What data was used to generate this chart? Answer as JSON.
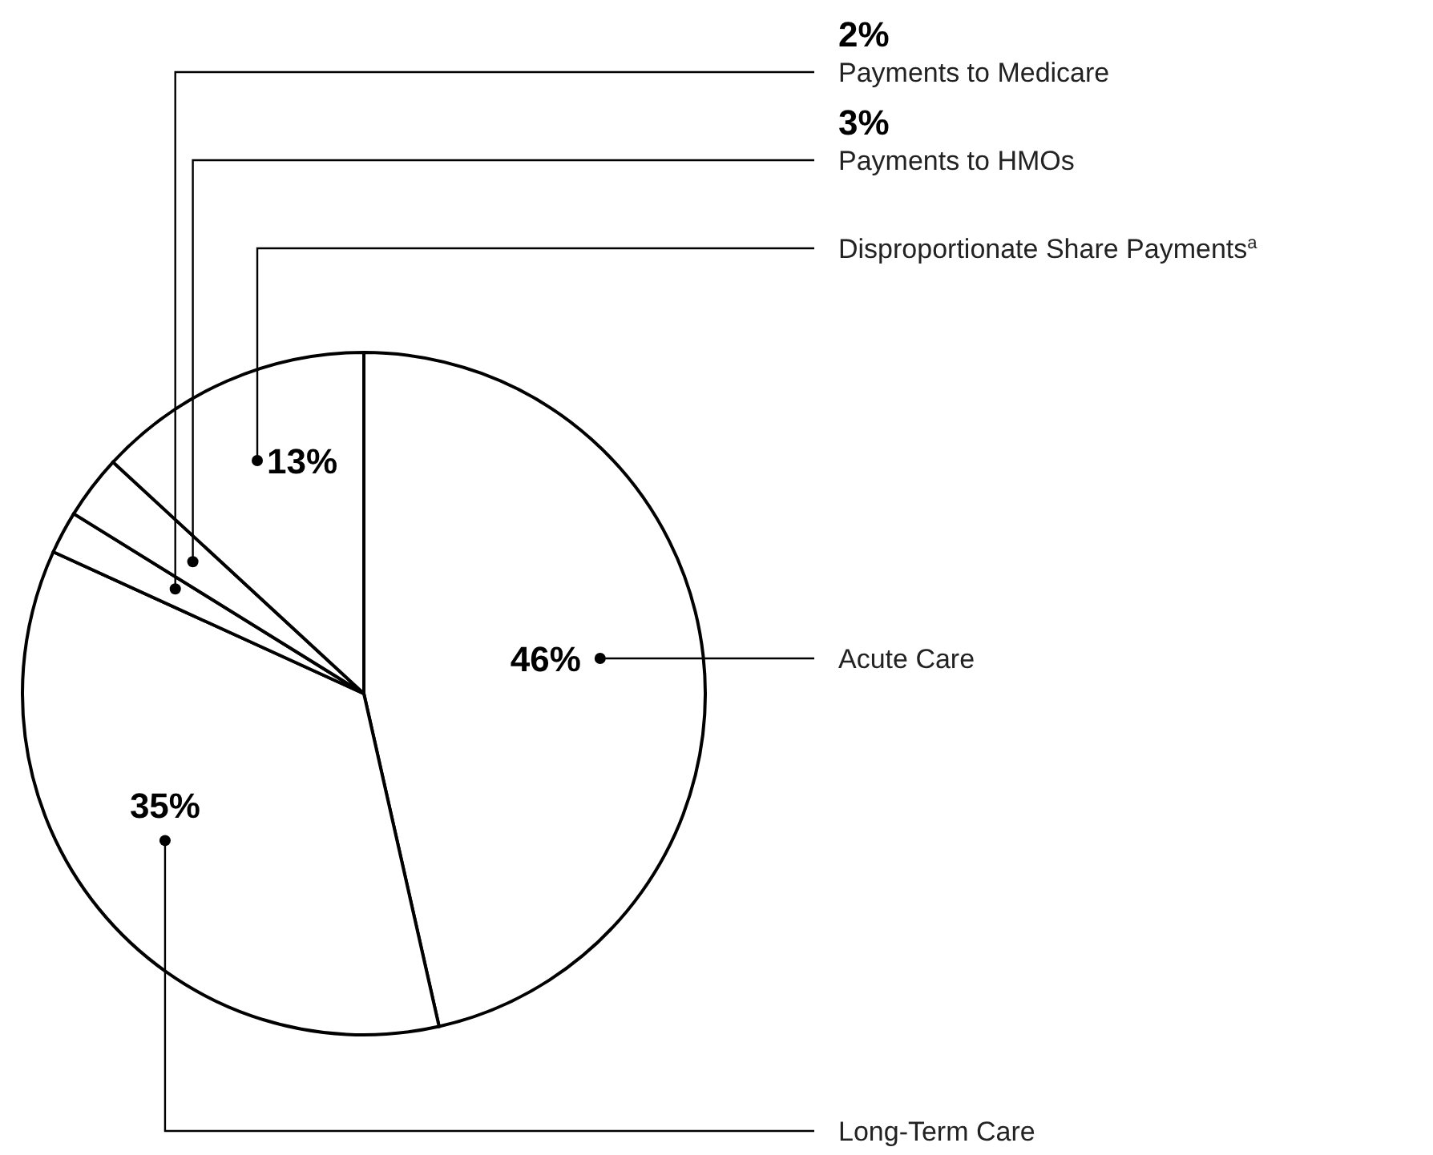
{
  "chart_data": {
    "type": "pie",
    "categories": [
      "Acute Care",
      "Long-Term Care",
      "Payments to Medicare",
      "Payments to HMOs",
      "Disproportionate Share Payments$^{a}$"
    ],
    "values": [
      46,
      35,
      2,
      3,
      13
    ],
    "colors": [
      "#ffffff",
      "#ffffff",
      "#ffffff",
      "#ffffff",
      "#ffffff"
    ],
    "value_labels": [
      "46%",
      "35%",
      "2%",
      "3%",
      "13%"
    ],
    "legend": false
  }
}
